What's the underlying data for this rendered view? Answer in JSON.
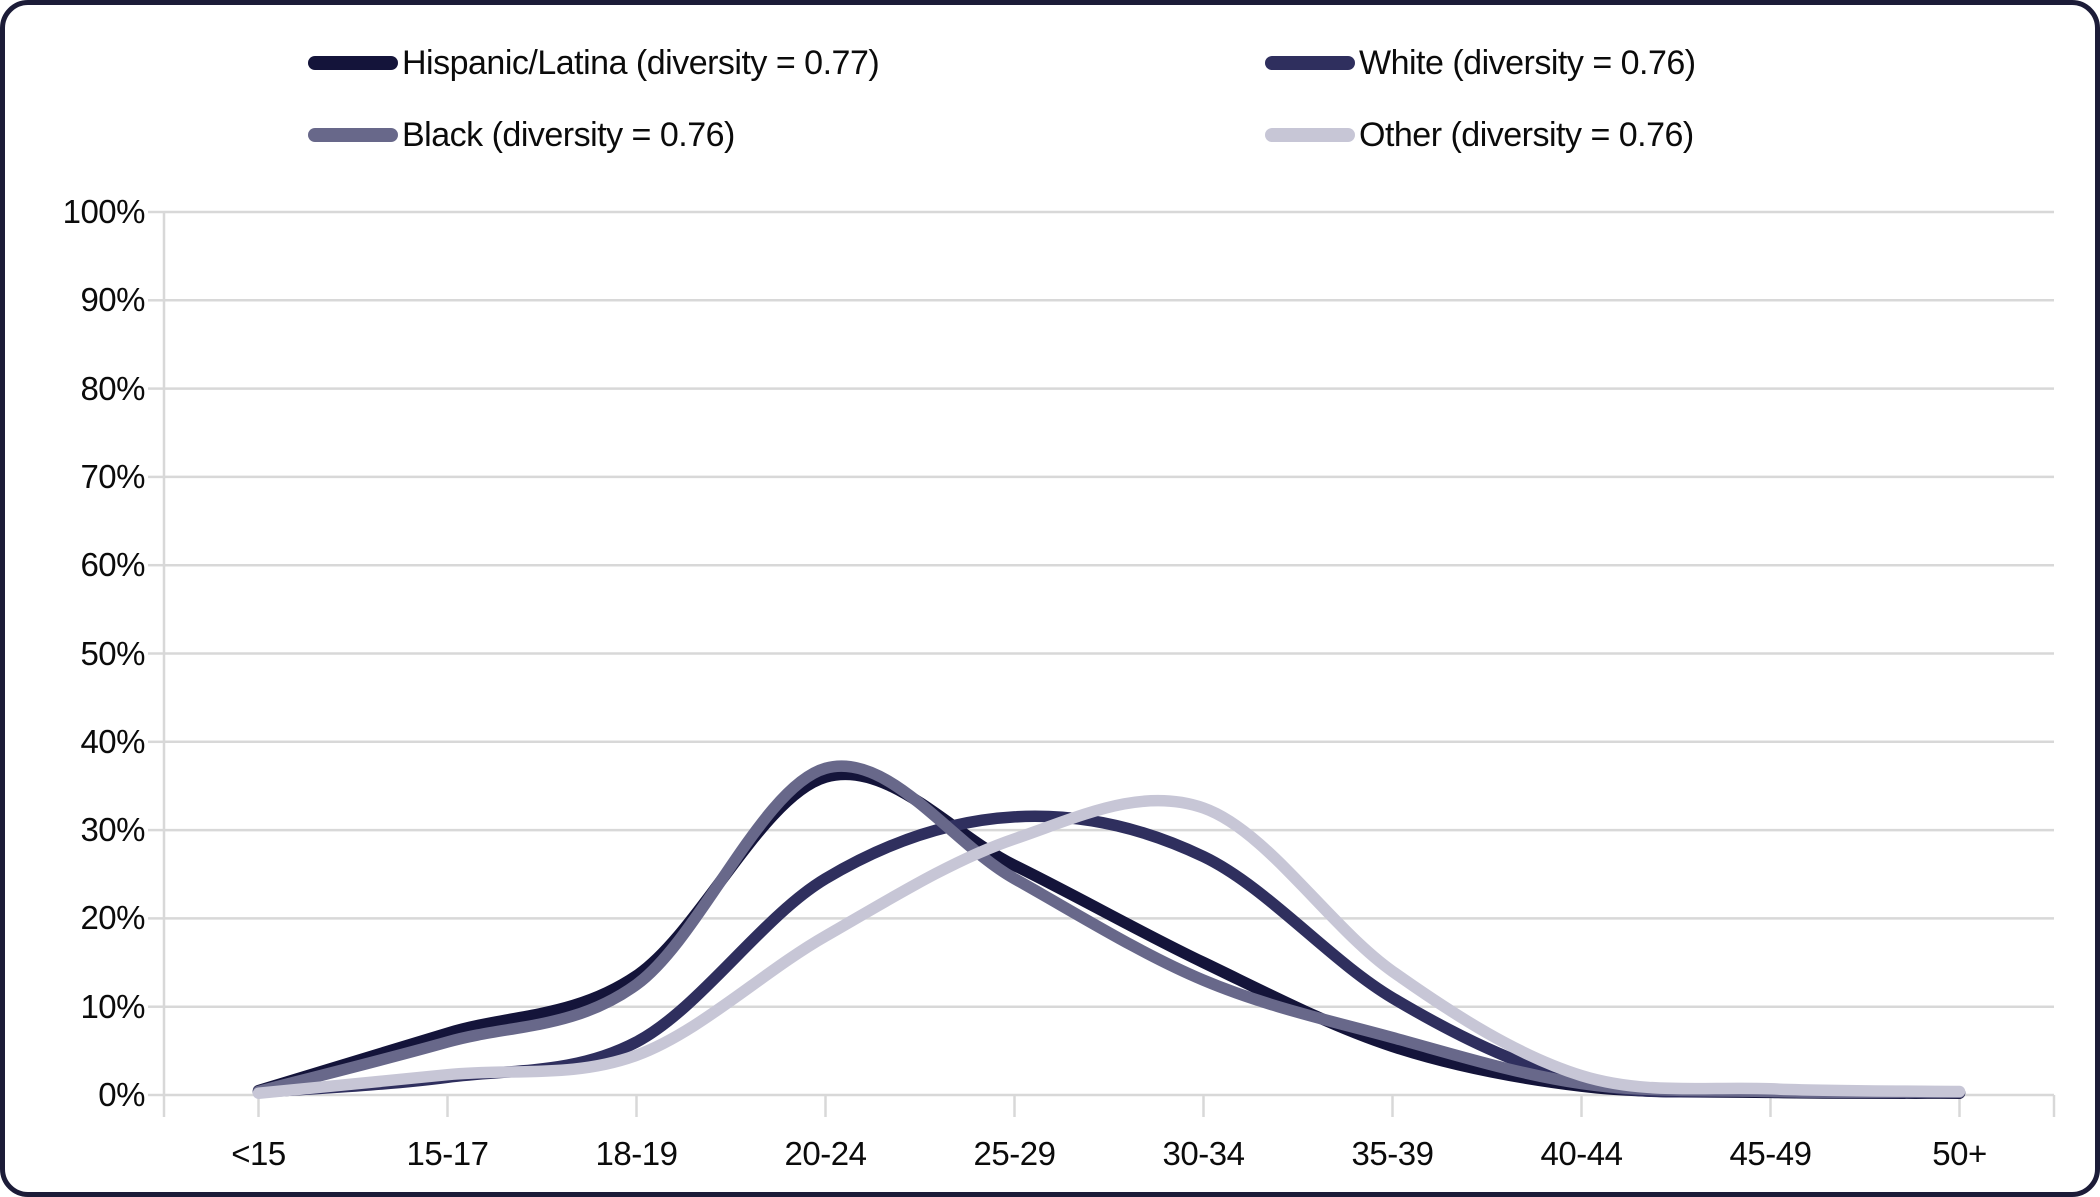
{
  "chart_data": {
    "type": "line",
    "title": "",
    "xlabel": "",
    "ylabel": "",
    "categories": [
      "<15",
      "15-17",
      "18-19",
      "20-24",
      "25-29",
      "30-34",
      "35-39",
      "40-44",
      "45-49",
      "50+"
    ],
    "series": [
      {
        "name": "Hispanic/Latina",
        "label": "Hispanic/Latina (diversity = 0.77)",
        "color": "#14143a",
        "values": [
          0.5,
          7,
          13.5,
          36,
          26,
          15,
          5.5,
          1.0,
          0.3,
          0.2
        ]
      },
      {
        "name": "White",
        "label": "White (diversity = 0.76)",
        "color": "#2f2f5e",
        "values": [
          0.3,
          2,
          6,
          24.5,
          31.5,
          27,
          11,
          1.5,
          0.4,
          0.3
        ]
      },
      {
        "name": "Black",
        "label": "Black (diversity = 0.76)",
        "color": "#68688a",
        "values": [
          0.4,
          6,
          12.5,
          37,
          24.5,
          13,
          6.5,
          1.3,
          0.4,
          0.3
        ]
      },
      {
        "name": "Other",
        "label": "Other (diversity = 0.76)",
        "color": "#c7c6d6",
        "values": [
          0.2,
          2.3,
          4.5,
          18,
          29,
          32.5,
          14,
          2.2,
          0.7,
          0.4
        ]
      }
    ],
    "ylim": [
      0,
      100
    ],
    "ytick_step": 10,
    "ytick_labels": [
      "0%",
      "10%",
      "20%",
      "30%",
      "40%",
      "50%",
      "60%",
      "70%",
      "80%",
      "90%",
      "100%"
    ],
    "grid": "horizontal",
    "legend_position": "top-two-columns",
    "line_smoothing": "spline",
    "colors": {
      "grid": "#d8d8d8",
      "axis": "#d8d8d8",
      "text": "#0b0b0b",
      "border": "#1c1c38",
      "background": "#ffffff"
    }
  }
}
